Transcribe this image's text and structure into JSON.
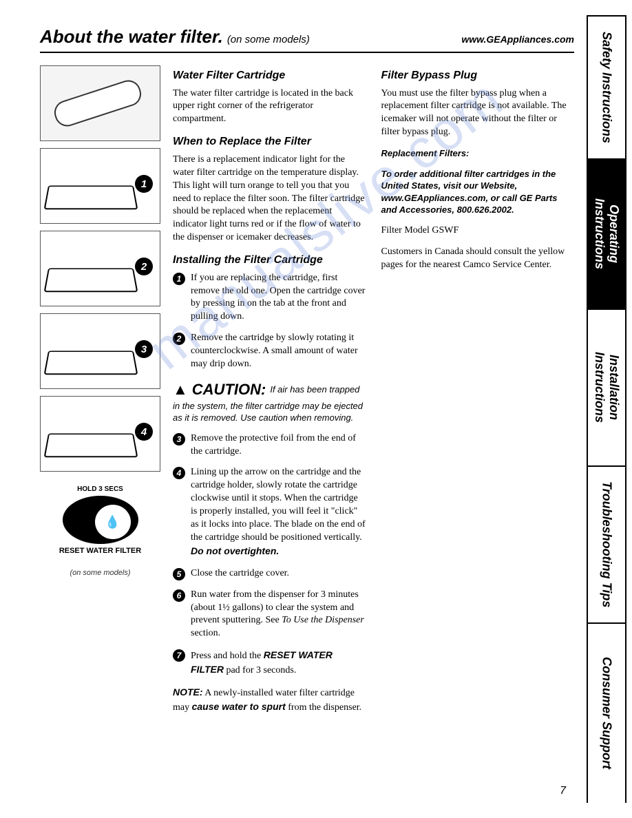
{
  "header": {
    "title": "About the water filter.",
    "subtitle": "(on some models)",
    "url": "www.GEAppliances.com"
  },
  "illus": {
    "steps": [
      "1",
      "2",
      "3",
      "4"
    ],
    "reset_top": "HOLD 3 SECS",
    "reset_bottom": "RESET WATER FILTER",
    "models_note": "(on some models)"
  },
  "left": {
    "h1": "Water Filter Cartridge",
    "p1": "The water filter cartridge is located in the back upper right corner of the refrigerator compartment.",
    "h2": "When to Replace the Filter",
    "p2": "There is a replacement indicator light for the water filter cartridge on the temperature display. This light will turn orange to tell you that you need to replace the filter soon. The filter cartridge should be replaced when the replacement indicator light turns red or if the flow of water to the dispenser or icemaker decreases.",
    "h3": "Installing the Filter Cartridge",
    "s1": "If you are replacing the cartridge, first remove the old one. Open the cartridge cover by pressing in on the tab at the front and pulling down.",
    "s2": "Remove the cartridge by slowly rotating it counterclockwise. A small amount of water may drip down.",
    "caution_word": "CAUTION:",
    "caution_inline": "If air has been trapped",
    "caution_body": "in the system, the filter cartridge may be ejected as it is removed. Use caution when removing.",
    "s3": "Remove the protective foil from the end of the cartridge.",
    "s4a": "Lining up the arrow on the cartridge and the cartridge holder, slowly rotate the cartridge clockwise until it stops. When the cartridge is properly installed, you will feel it \"click\" as it locks into place. The blade on the end of the cartridge should be positioned vertically. ",
    "s4b": "Do not overtighten.",
    "s5": "Close the cartridge cover.",
    "s6a": "Run water from the dispenser for 3 minutes (about 1½ gallons) to clear the system and prevent sputtering. See ",
    "s6b": "To Use the Dispenser",
    "s6c": " section.",
    "s7a": "Press and hold the ",
    "s7b": "RESET WATER FILTER",
    "s7c": " pad for 3 seconds.",
    "note_a": "NOTE:",
    "note_b": " A newly-installed water filter cartridge may ",
    "note_c": "cause water to spurt",
    "note_d": " from the dispenser."
  },
  "right": {
    "h1": "Filter Bypass Plug",
    "p1": "You must use the filter bypass plug when a replacement filter cartridge is not available. The icemaker will not operate without the filter or filter bypass plug.",
    "repl_head": "Replacement Filters:",
    "repl_body": "To order additional filter cartridges in the United States, visit our Website, www.GEAppliances.com, or call GE Parts and Accessories, 800.626.2002.",
    "model": "Filter Model GSWF",
    "canada": "Customers in Canada should consult the yellow pages for the nearest Camco Service Center."
  },
  "tabs": {
    "safety": "Safety Instructions",
    "operating": "Operating Instructions",
    "installation": "Installation Instructions",
    "troubleshooting": "Troubleshooting Tips",
    "consumer": "Consumer Support"
  },
  "page_number": "7",
  "watermark": "manualslive.com",
  "colors": {
    "text": "#000000",
    "bg": "#ffffff",
    "tab_active_bg": "#000000",
    "tab_active_fg": "#ffffff",
    "watermark": "rgba(110,140,220,0.28)"
  }
}
